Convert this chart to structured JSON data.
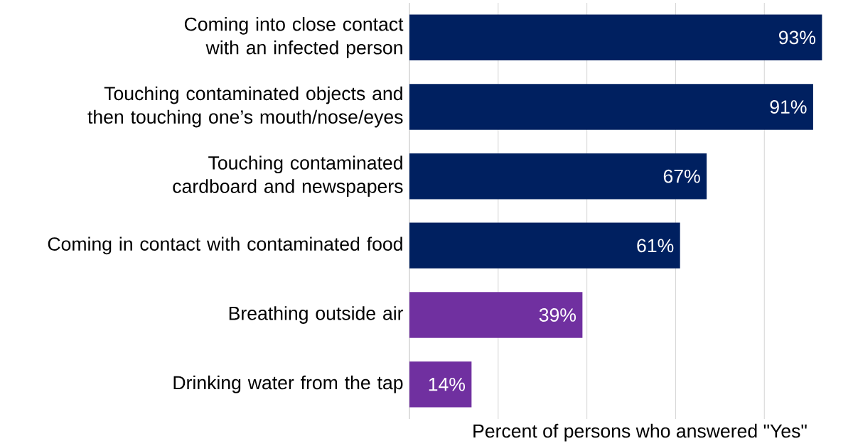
{
  "chart_data": {
    "type": "bar",
    "orientation": "horizontal",
    "xlabel": "Percent of persons who answered \"Yes\"",
    "categories": [
      "Coming into close contact with an infected person",
      "Touching contaminated objects and then touching one’s mouth/nose/eyes",
      "Touching contaminated cardboard and newspapers",
      "Coming in contact with contaminated food",
      "Breathing outside air",
      "Drinking water from the tap"
    ],
    "values": [
      93,
      91,
      67,
      61,
      39,
      14
    ],
    "value_labels": [
      "93%",
      "91%",
      "67%",
      "61%",
      "39%",
      "14%"
    ],
    "colors": [
      "#002060",
      "#002060",
      "#002060",
      "#002060",
      "#7030a0",
      "#7030a0"
    ],
    "xticks": [
      {
        "value": 0,
        "label": null
      },
      {
        "value": 20,
        "label": null
      },
      {
        "value": 40,
        "label": null
      },
      {
        "value": 60,
        "label": null
      },
      {
        "value": 80,
        "label": null
      }
    ],
    "grid": "x",
    "tick_labels": "y"
  }
}
